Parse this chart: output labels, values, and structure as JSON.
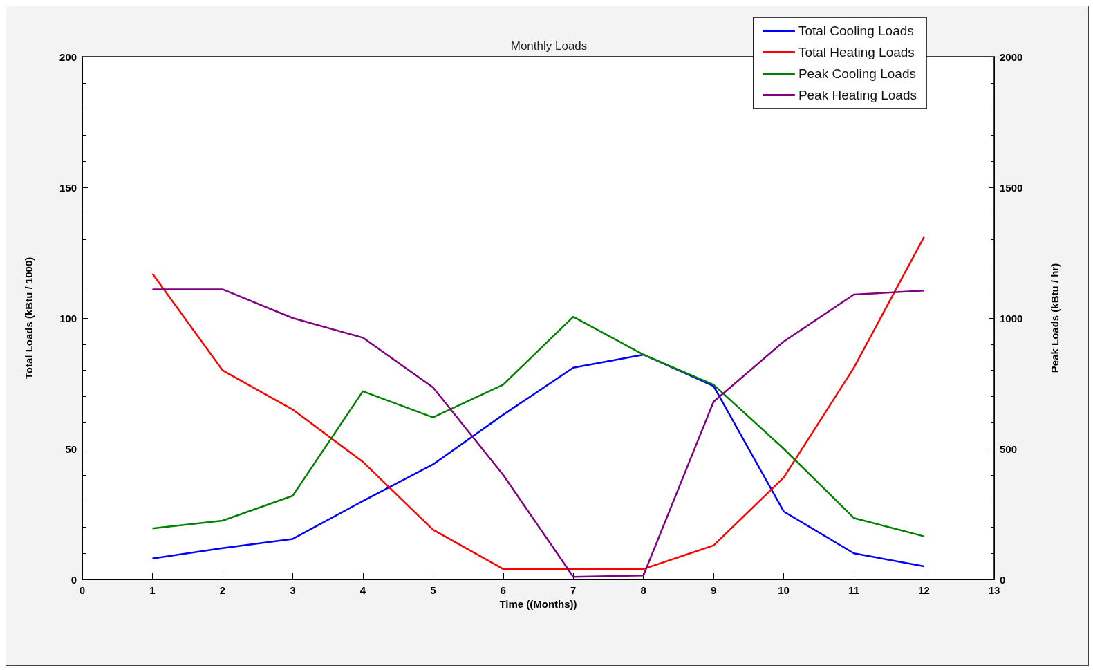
{
  "chart_data": {
    "type": "line",
    "title": "Monthly Loads",
    "xlabel": "Time ((Months))",
    "ylabel": "Total Loads (kBtu / 1000)",
    "y2label": "Peak Loads (kBtu / hr)",
    "x": [
      1,
      2,
      3,
      4,
      5,
      6,
      7,
      8,
      9,
      10,
      11,
      12
    ],
    "xlim": [
      0,
      13
    ],
    "xticks": [
      0,
      1,
      2,
      3,
      4,
      5,
      6,
      7,
      8,
      9,
      10,
      11,
      12,
      13
    ],
    "ylim": [
      0,
      200
    ],
    "yticks": [
      0,
      50,
      100,
      150,
      200
    ],
    "y2lim": [
      0,
      2000
    ],
    "y2ticks": [
      0,
      500,
      1000,
      1500,
      2000
    ],
    "legend": "top right",
    "grid": false,
    "marker": "none",
    "line_style": "solid",
    "series": [
      {
        "name": "Total Cooling Loads",
        "color": "#0000ff",
        "values": [
          8,
          12,
          15.5,
          30,
          44,
          63,
          81,
          86,
          74,
          26,
          10,
          5
        ]
      },
      {
        "name": "Total Heating Loads",
        "color": "#ff0000",
        "values": [
          117,
          80,
          65,
          45,
          19,
          4,
          4,
          4,
          13,
          39,
          81,
          131
        ]
      },
      {
        "name": "Peak Cooling Loads",
        "color": "#008000",
        "axis": "y2",
        "values": [
          195,
          225,
          320,
          720,
          620,
          745,
          1005,
          860,
          745,
          500,
          235,
          165
        ]
      },
      {
        "name": "Peak Heating Loads",
        "color": "#800080",
        "axis": "y2",
        "values": [
          1110,
          1110,
          1000,
          925,
          735,
          400,
          10,
          15,
          680,
          910,
          1090,
          1105
        ]
      }
    ]
  }
}
